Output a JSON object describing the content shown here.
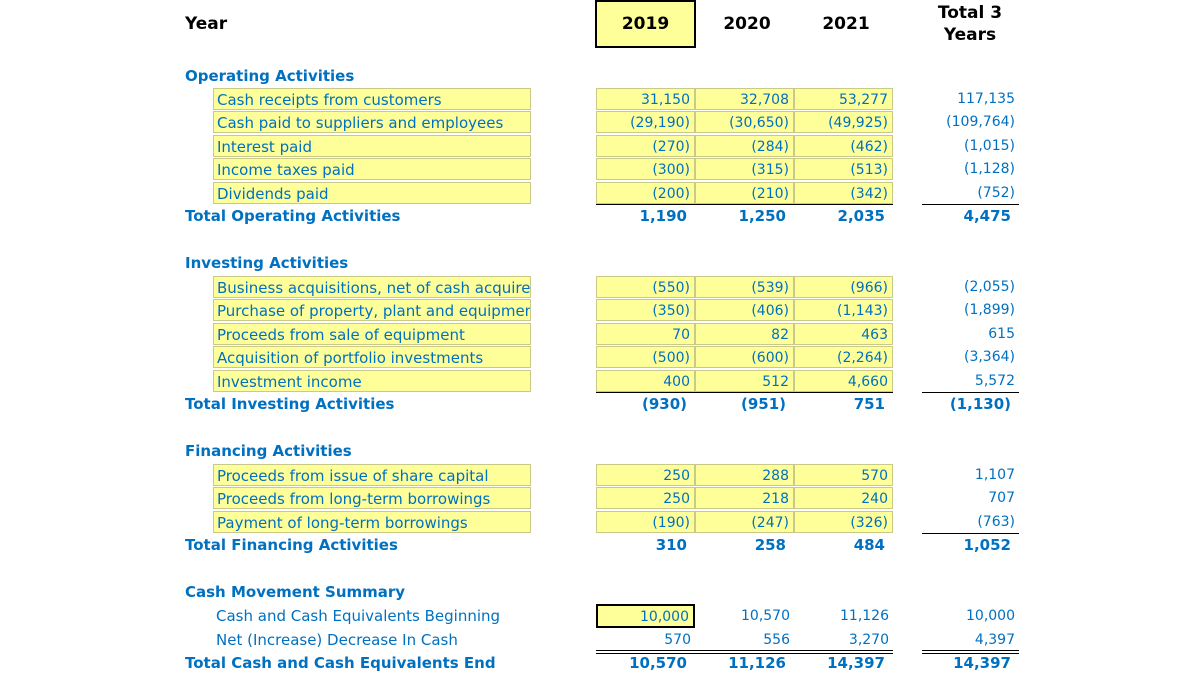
{
  "header": {
    "year_label": "Year",
    "col_2019": "2019",
    "col_2020": "2020",
    "col_2021": "2021",
    "total_line1": "Total 3",
    "total_line2": "Years"
  },
  "operating": {
    "title": "Operating Activities",
    "rows": [
      {
        "label": "Cash receipts from customers",
        "v2019": "31,150",
        "v2020": "32,708",
        "v2021": "53,277",
        "total": "117,135"
      },
      {
        "label": "Cash paid to suppliers and employees",
        "v2019": "(29,190)",
        "v2020": "(30,650)",
        "v2021": "(49,925)",
        "total": "(109,764)"
      },
      {
        "label": "Interest paid",
        "v2019": "(270)",
        "v2020": "(284)",
        "v2021": "(462)",
        "total": "(1,015)"
      },
      {
        "label": "Income taxes paid",
        "v2019": "(300)",
        "v2020": "(315)",
        "v2021": "(513)",
        "total": "(1,128)"
      },
      {
        "label": "Dividends paid",
        "v2019": "(200)",
        "v2020": "(210)",
        "v2021": "(342)",
        "total": "(752)"
      }
    ],
    "total": {
      "label": "Total Operating Activities",
      "v2019": "1,190",
      "v2020": "1,250",
      "v2021": "2,035",
      "total": "4,475"
    }
  },
  "investing": {
    "title": "Investing Activities",
    "rows": [
      {
        "label": "Business acquisitions, net of cash acquired",
        "v2019": "(550)",
        "v2020": "(539)",
        "v2021": "(966)",
        "total": "(2,055)"
      },
      {
        "label": "Purchase of property, plant and equipment",
        "v2019": "(350)",
        "v2020": "(406)",
        "v2021": "(1,143)",
        "total": "(1,899)"
      },
      {
        "label": "Proceeds from sale of equipment",
        "v2019": "70",
        "v2020": "82",
        "v2021": "463",
        "total": "615"
      },
      {
        "label": "Acquisition of portfolio investments",
        "v2019": "(500)",
        "v2020": "(600)",
        "v2021": "(2,264)",
        "total": "(3,364)"
      },
      {
        "label": "Investment income",
        "v2019": "400",
        "v2020": "512",
        "v2021": "4,660",
        "total": "5,572"
      }
    ],
    "total": {
      "label": "Total Investing Activities",
      "v2019": "(930)",
      "v2020": "(951)",
      "v2021": "751",
      "total": "(1,130)"
    }
  },
  "financing": {
    "title": "Financing Activities",
    "rows": [
      {
        "label": "Proceeds from issue of share capital",
        "v2019": "250",
        "v2020": "288",
        "v2021": "570",
        "total": "1,107"
      },
      {
        "label": "Proceeds from long-term borrowings",
        "v2019": "250",
        "v2020": "218",
        "v2021": "240",
        "total": "707"
      },
      {
        "label": "Payment of long-term borrowings",
        "v2019": "(190)",
        "v2020": "(247)",
        "v2021": "(326)",
        "total": "(763)"
      }
    ],
    "total": {
      "label": "Total Financing Activities",
      "v2019": "310",
      "v2020": "258",
      "v2021": "484",
      "total": "1,052"
    }
  },
  "summary": {
    "title": "Cash Movement Summary",
    "rows": [
      {
        "label": "Cash and Cash Equivalents Beginning",
        "v2019": "10,000",
        "v2020": "10,570",
        "v2021": "11,126",
        "total": "10,000"
      },
      {
        "label": "Net (Increase) Decrease In Cash",
        "v2019": "570",
        "v2020": "556",
        "v2021": "3,270",
        "total": "4,397"
      }
    ],
    "total": {
      "label": "Total Cash and Cash Equivalents End",
      "v2019": "10,570",
      "v2020": "11,126",
      "v2021": "14,397",
      "total": "14,397"
    }
  },
  "colors": {
    "input_fill": "#ffff99",
    "text_blue": "#0070c0",
    "header_text": "#000000"
  }
}
